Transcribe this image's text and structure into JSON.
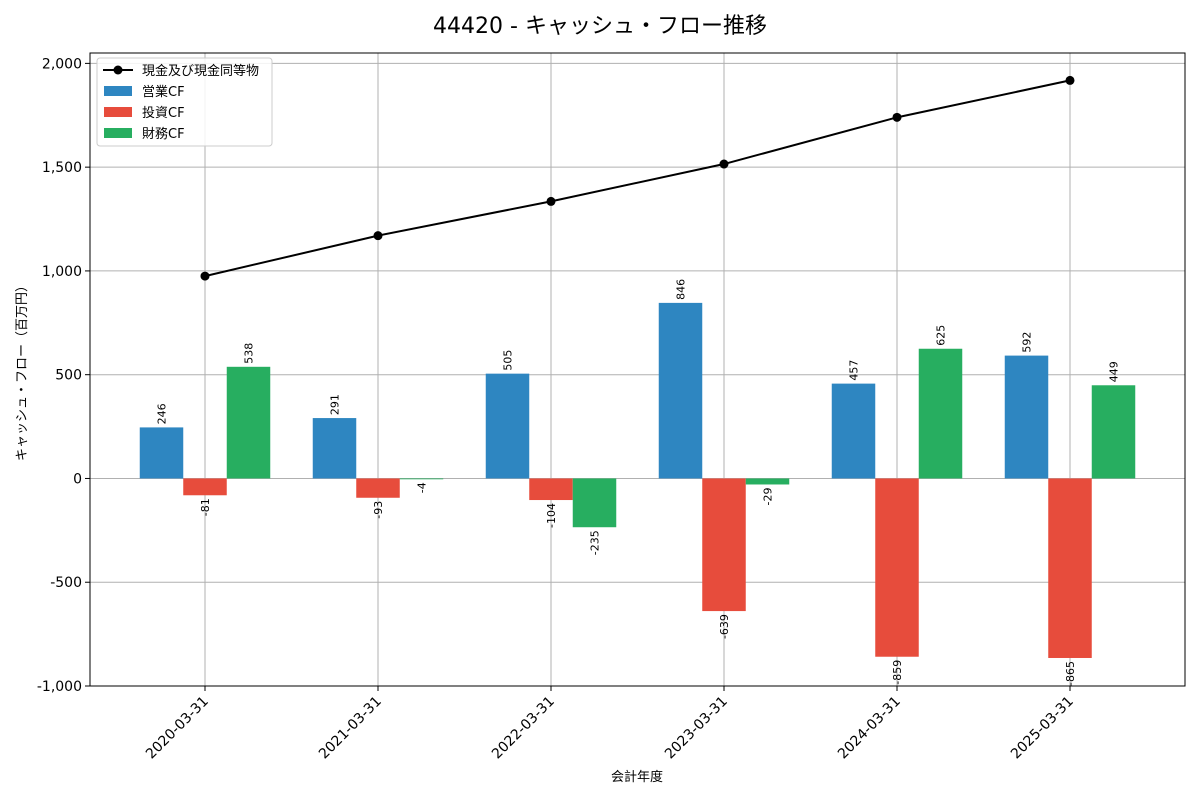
{
  "chart_data": {
    "type": "bar",
    "title": "44420 - キャッシュ・フロー推移",
    "xlabel": "会計年度",
    "ylabel": "キャッシュ・フロー（百万円）",
    "ylim": [
      -1000,
      2050
    ],
    "yticks": [
      -1000,
      -500,
      0,
      500,
      1000,
      1500,
      2000
    ],
    "ytick_labels": [
      "-1,000",
      "-500",
      "0",
      "500",
      "1,000",
      "1,500",
      "2,000"
    ],
    "grid": true,
    "legend_position": "top-left",
    "categories": [
      "2020-03-31",
      "2021-03-31",
      "2022-03-31",
      "2023-03-31",
      "2024-03-31",
      "2025-03-31"
    ],
    "series": [
      {
        "name": "営業CF",
        "type": "bar",
        "color": "#2e86c1",
        "values": [
          246,
          291,
          505,
          846,
          457,
          592
        ]
      },
      {
        "name": "投資CF",
        "type": "bar",
        "color": "#e74c3c",
        "values": [
          -81,
          -93,
          -104,
          -639,
          -859,
          -865
        ]
      },
      {
        "name": "財務CF",
        "type": "bar",
        "color": "#27ae60",
        "values": [
          538,
          -4,
          -235,
          -29,
          625,
          449
        ]
      }
    ],
    "line_series": {
      "name": "現金及び現金同等物",
      "type": "line",
      "color": "#000000",
      "values": [
        975,
        1170,
        1335,
        1515,
        1740,
        1918
      ]
    }
  }
}
